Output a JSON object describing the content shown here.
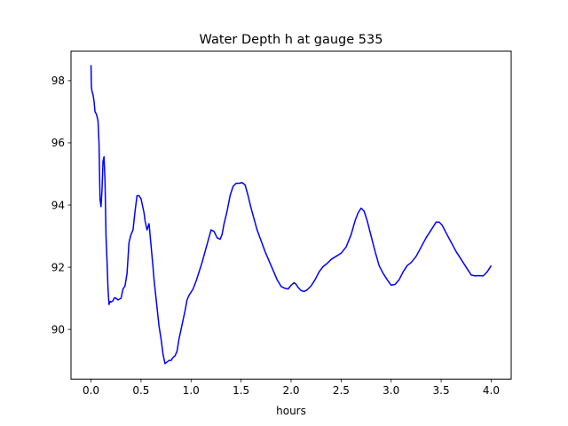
{
  "chart_data": {
    "type": "line",
    "title": "Water Depth h at gauge 535",
    "xlabel": "hours",
    "ylabel": "",
    "xlim": [
      -0.2,
      4.2
    ],
    "ylim": [
      88.4,
      98.95
    ],
    "xticks": [
      0.0,
      0.5,
      1.0,
      1.5,
      2.0,
      2.5,
      3.0,
      3.5,
      4.0
    ],
    "xtick_labels": [
      "0.0",
      "0.5",
      "1.0",
      "1.5",
      "2.0",
      "2.5",
      "3.0",
      "3.5",
      "4.0"
    ],
    "yticks": [
      90,
      92,
      94,
      96,
      98
    ],
    "ytick_labels": [
      "90",
      "92",
      "94",
      "96",
      "98"
    ],
    "grid": false,
    "line_color": "#0000ff",
    "series": [
      {
        "x": [
          0.0,
          0.004,
          0.01,
          0.02,
          0.03,
          0.04,
          0.05,
          0.06,
          0.07,
          0.08,
          0.09,
          0.1,
          0.11,
          0.12,
          0.13,
          0.14,
          0.15,
          0.16,
          0.17,
          0.18,
          0.19,
          0.2,
          0.21,
          0.22,
          0.23,
          0.24,
          0.25,
          0.27,
          0.3,
          0.32,
          0.34,
          0.36,
          0.38,
          0.4,
          0.42,
          0.44,
          0.46,
          0.48,
          0.5,
          0.51,
          0.52,
          0.53,
          0.54,
          0.56,
          0.58,
          0.6,
          0.62,
          0.63,
          0.64,
          0.65,
          0.66,
          0.67,
          0.68,
          0.7,
          0.72,
          0.74,
          0.76,
          0.78,
          0.8,
          0.81,
          0.82,
          0.84,
          0.86,
          0.88,
          0.9,
          0.92,
          0.94,
          0.96,
          0.98,
          1.0,
          1.02,
          1.05,
          1.08,
          1.11,
          1.14,
          1.17,
          1.2,
          1.23,
          1.26,
          1.29,
          1.31,
          1.33,
          1.36,
          1.39,
          1.42,
          1.45,
          1.48,
          1.51,
          1.54,
          1.57,
          1.6,
          1.63,
          1.66,
          1.7,
          1.74,
          1.78,
          1.82,
          1.86,
          1.9,
          1.94,
          1.97,
          2.0,
          2.03,
          2.05,
          2.07,
          2.1,
          2.13,
          2.16,
          2.2,
          2.24,
          2.28,
          2.32,
          2.36,
          2.4,
          2.45,
          2.5,
          2.55,
          2.6,
          2.64,
          2.67,
          2.7,
          2.73,
          2.76,
          2.8,
          2.84,
          2.88,
          2.92,
          2.96,
          3.0,
          3.04,
          3.08,
          3.12,
          3.16,
          3.2,
          3.25,
          3.3,
          3.35,
          3.4,
          3.45,
          3.48,
          3.51,
          3.55,
          3.6,
          3.65,
          3.7,
          3.75,
          3.8,
          3.84,
          3.88,
          3.92,
          3.96,
          4.0
        ],
        "y": [
          98.5,
          97.8,
          97.65,
          97.55,
          97.35,
          97.0,
          96.95,
          96.85,
          96.7,
          96.0,
          94.2,
          93.95,
          94.5,
          95.4,
          95.55,
          94.8,
          93.0,
          92.2,
          91.3,
          90.8,
          90.9,
          90.88,
          90.9,
          90.92,
          91.0,
          91.02,
          91.0,
          90.95,
          91.0,
          91.3,
          91.4,
          91.8,
          92.8,
          93.05,
          93.2,
          93.8,
          94.3,
          94.3,
          94.2,
          94.05,
          93.9,
          93.75,
          93.5,
          93.2,
          93.4,
          92.7,
          92.0,
          91.6,
          91.3,
          91.0,
          90.7,
          90.4,
          90.1,
          89.7,
          89.2,
          88.9,
          88.95,
          89.0,
          89.0,
          89.05,
          89.1,
          89.15,
          89.3,
          89.7,
          90.0,
          90.3,
          90.6,
          90.95,
          91.1,
          91.2,
          91.3,
          91.55,
          91.85,
          92.15,
          92.5,
          92.85,
          93.2,
          93.15,
          92.95,
          92.9,
          93.05,
          93.4,
          93.8,
          94.3,
          94.6,
          94.7,
          94.7,
          94.72,
          94.65,
          94.3,
          93.9,
          93.55,
          93.2,
          92.85,
          92.5,
          92.2,
          91.9,
          91.6,
          91.38,
          91.32,
          91.3,
          91.42,
          91.5,
          91.45,
          91.35,
          91.25,
          91.22,
          91.27,
          91.4,
          91.6,
          91.85,
          92.02,
          92.12,
          92.25,
          92.35,
          92.45,
          92.65,
          93.05,
          93.5,
          93.75,
          93.9,
          93.8,
          93.5,
          93.0,
          92.5,
          92.05,
          91.8,
          91.6,
          91.42,
          91.45,
          91.6,
          91.85,
          92.05,
          92.15,
          92.35,
          92.65,
          92.95,
          93.2,
          93.45,
          93.45,
          93.35,
          93.1,
          92.8,
          92.5,
          92.25,
          92.0,
          91.75,
          91.72,
          91.73,
          91.72,
          91.85,
          92.05
        ]
      }
    ]
  }
}
